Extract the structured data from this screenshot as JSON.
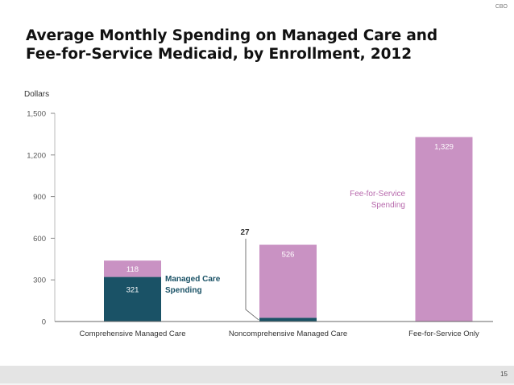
{
  "header": {
    "brand": "CBO",
    "title_lines": [
      "Average Monthly Spending on Managed Care and",
      "Fee-for-Service Medicaid, by Enrollment, 2012"
    ]
  },
  "footer": {
    "page_number": "15"
  },
  "colors": {
    "managed_care": "#1a5266",
    "fee_for_service": "#c992c3",
    "axis": "#666666",
    "tick_text": "#555555"
  },
  "chart_data": {
    "type": "bar",
    "stacked": true,
    "title": "Average Monthly Spending on Managed Care and Fee-for-Service Medicaid, by Enrollment, 2012",
    "xlabel": "",
    "ylabel": "Dollars",
    "ylim": [
      0,
      1500
    ],
    "yticks": [
      0,
      300,
      600,
      900,
      1200,
      1500
    ],
    "ytick_labels": [
      "0",
      "300",
      "600",
      "900",
      "1,200",
      "1,500"
    ],
    "categories": [
      "Comprehensive Managed Care",
      "Noncomprehensive Managed Care",
      "Fee-for-Service Only"
    ],
    "series": [
      {
        "name": "Managed Care Spending",
        "values": [
          321,
          27,
          0
        ],
        "labels": [
          "321",
          "27",
          ""
        ]
      },
      {
        "name": "Fee-for-Service Spending",
        "values": [
          118,
          526,
          1329
        ],
        "labels": [
          "118",
          "526",
          "1,329"
        ]
      }
    ],
    "annotations": [
      {
        "text_lines": [
          "Managed Care",
          "Spending"
        ],
        "series": "Managed Care Spending",
        "placement": "right of first bar"
      },
      {
        "text_lines": [
          "Fee-for-Service",
          "Spending"
        ],
        "series": "Fee-for-Service Spending",
        "placement": "left of third bar"
      },
      {
        "text": "27",
        "category": "Noncomprehensive Managed Care",
        "placement": "callout with leader line"
      }
    ],
    "grid": false,
    "legend": "none (inline labels)"
  }
}
